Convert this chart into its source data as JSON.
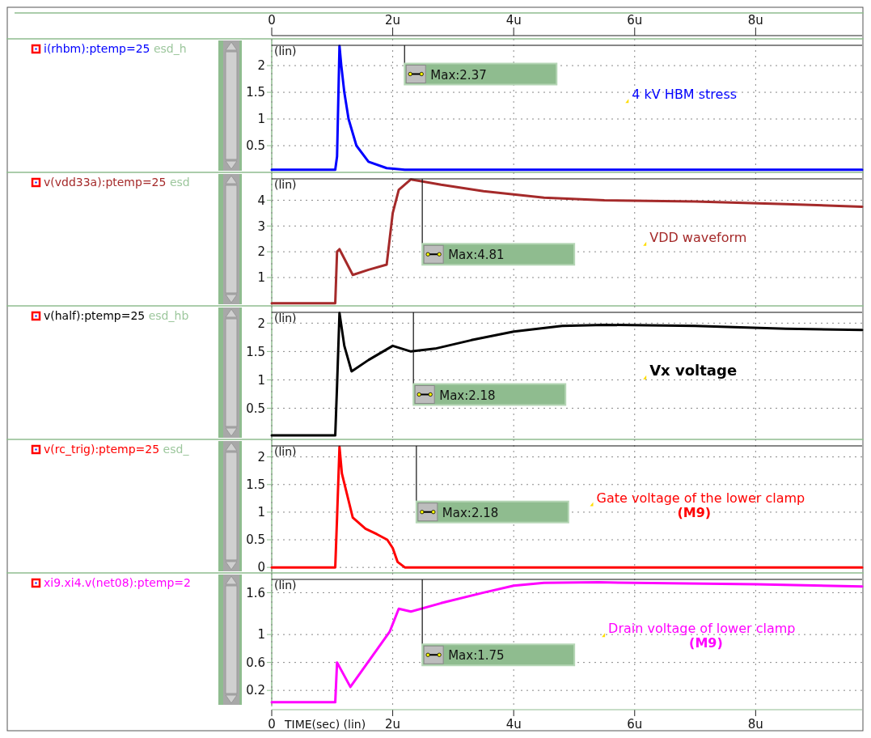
{
  "chart_data": [
    {
      "type": "line",
      "ylabel": "(lin)",
      "x": [
        0,
        1.05,
        1.08,
        1.12,
        1.15,
        1.2,
        1.27,
        1.4,
        1.6,
        1.9,
        2.2,
        9.76
      ],
      "series": [
        {
          "name": "i(rhbm):ptemp=25 esd_h",
          "color": "#0000ff",
          "values": [
            0.05,
            0.05,
            0.3,
            2.37,
            2.0,
            1.5,
            1.0,
            0.5,
            0.2,
            0.08,
            0.05,
            0.05
          ]
        }
      ],
      "xlim": [
        0,
        9.76
      ],
      "xticks": [
        0,
        2,
        4,
        6,
        8
      ],
      "x2lim": [
        0,
        9.76
      ],
      "x2ticks": [
        0,
        {
          "value": 2,
          "label": "2u"
        },
        {
          "value": 4,
          "label": "4u"
        },
        {
          "value": 6,
          "label": "6u"
        },
        {
          "value": 8,
          "label": "8u"
        }
      ],
      "ylim": [
        0,
        2.38
      ],
      "yticks": [
        0.5,
        1,
        1.5,
        2
      ],
      "grid": true,
      "legend": "left",
      "tick_labels": "y",
      "line_style": "solid",
      "annotations": [
        "Max:2.37",
        "4 kV HBM stress"
      ]
    },
    {
      "type": "line",
      "ylabel": "(lin)",
      "x": [
        0,
        1.05,
        1.08,
        1.12,
        1.34,
        1.6,
        1.9,
        1.95,
        2.0,
        2.1,
        2.3,
        2.8,
        3.5,
        4.5,
        5.5,
        7,
        8.5,
        9.76
      ],
      "series": [
        {
          "name": "v(vdd33a):ptemp=25 esd",
          "color": "#a52a2a",
          "values": [
            0,
            0,
            2.0,
            2.1,
            1.1,
            1.3,
            1.5,
            2.5,
            3.5,
            4.4,
            4.81,
            4.6,
            4.35,
            4.1,
            4.0,
            3.95,
            3.85,
            3.75
          ]
        }
      ],
      "xlim": [
        0,
        9.76
      ],
      "xticks": [
        0,
        2,
        4,
        6,
        8
      ],
      "ylim": [
        -0.1,
        4.83
      ],
      "yticks": [
        1,
        2,
        3,
        4
      ],
      "grid": true,
      "legend": "left",
      "tick_labels": "y",
      "line_style": "solid",
      "annotations": [
        "Max:4.81",
        "VDD waveform"
      ]
    },
    {
      "type": "line",
      "ylabel": "(lin)",
      "x": [
        0,
        1.05,
        1.08,
        1.12,
        1.2,
        1.32,
        1.6,
        2.0,
        2.3,
        2.7,
        3.3,
        4,
        4.8,
        5.5,
        7,
        8.5,
        9.76
      ],
      "series": [
        {
          "name": "v(half):ptemp=25 esd_hb",
          "color": "#000000",
          "values": [
            0.02,
            0.02,
            0.9,
            2.18,
            1.6,
            1.15,
            1.35,
            1.6,
            1.5,
            1.55,
            1.7,
            1.85,
            1.95,
            1.97,
            1.95,
            1.9,
            1.88
          ]
        }
      ],
      "xlim": [
        0,
        9.76
      ],
      "xticks": [
        0,
        2,
        4,
        6,
        8
      ],
      "ylim": [
        -0.05,
        2.19
      ],
      "yticks": [
        0.5,
        1,
        1.5,
        2
      ],
      "grid": true,
      "legend": "left",
      "tick_labels": "y",
      "line_style": "solid",
      "annotations": [
        "Max:2.18",
        "Vx voltage"
      ]
    },
    {
      "type": "line",
      "ylabel": "(lin)",
      "x": [
        0,
        1.05,
        1.08,
        1.12,
        1.16,
        1.34,
        1.55,
        1.74,
        1.91,
        2.0,
        2.08,
        2.2,
        9.76
      ],
      "series": [
        {
          "name": "v(rc_trig):ptemp=25 esd_",
          "color": "#ff0000",
          "values": [
            0,
            0,
            0.9,
            2.18,
            1.7,
            0.9,
            0.7,
            0.6,
            0.5,
            0.35,
            0.1,
            0,
            0
          ]
        }
      ],
      "xlim": [
        0,
        9.76
      ],
      "xticks": [
        0,
        2,
        4,
        6,
        8
      ],
      "ylim": [
        -0.1,
        2.2
      ],
      "yticks": [
        0,
        0.5,
        1,
        1.5,
        2
      ],
      "grid": true,
      "legend": "left",
      "tick_labels": "y",
      "line_style": "solid",
      "annotations": [
        "Max:2.18",
        "Gate voltage of the lower clamp\n(M9)"
      ]
    },
    {
      "type": "line",
      "ylabel": "(lin)",
      "xlabel": "TIME(sec) (lin)",
      "x": [
        0,
        1.05,
        1.08,
        1.3,
        1.95,
        2.1,
        2.3,
        2.8,
        3.5,
        4,
        4.5,
        5.4,
        6,
        8,
        9.76
      ],
      "series": [
        {
          "name": "xi9.xi4.v(net08):ptemp=2",
          "color": "#ff00ff",
          "values": [
            0.03,
            0.03,
            0.6,
            0.25,
            1.04,
            1.37,
            1.33,
            1.45,
            1.6,
            1.7,
            1.74,
            1.75,
            1.74,
            1.72,
            1.69
          ]
        }
      ],
      "xlim": [
        0,
        9.76
      ],
      "xticks": [
        0,
        {
          "value": 2,
          "label": "2u"
        },
        {
          "value": 4,
          "label": "4u"
        },
        {
          "value": 6,
          "label": "6u"
        },
        {
          "value": 8,
          "label": "8u"
        }
      ],
      "ylim": [
        -0.03,
        1.79
      ],
      "yticks": [
        0.2,
        0.6,
        1,
        1.6
      ],
      "grid": true,
      "legend": "left",
      "line_style": "solid",
      "annotations": [
        "Max:1.75",
        "Drain voltage of lower clamp\n(M9)"
      ]
    }
  ]
}
